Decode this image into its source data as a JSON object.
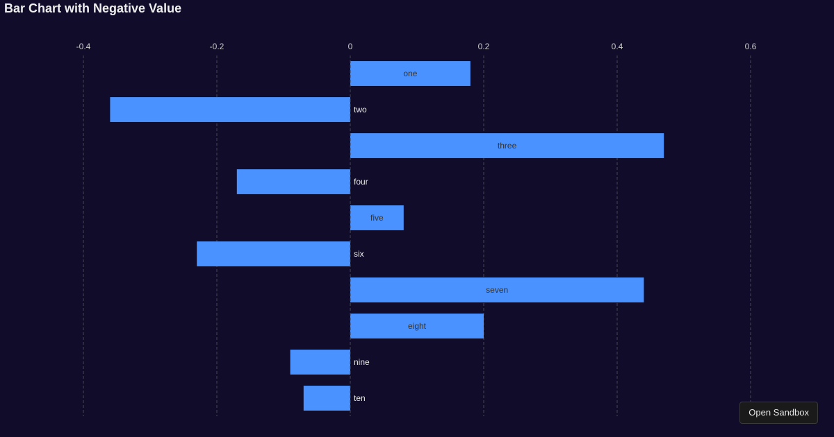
{
  "chart_data": {
    "type": "bar",
    "orientation": "horizontal",
    "title": "Bar Chart with Negative Value",
    "categories": [
      "one",
      "two",
      "three",
      "four",
      "five",
      "six",
      "seven",
      "eight",
      "nine",
      "ten"
    ],
    "values": [
      0.18,
      -0.36,
      0.47,
      -0.17,
      0.08,
      -0.23,
      0.44,
      0.2,
      -0.09,
      -0.07
    ],
    "xlim": [
      -0.5,
      0.7
    ],
    "xticks": [
      -0.4,
      -0.2,
      0,
      0.2,
      0.4,
      0.6
    ],
    "xtick_labels": [
      "-0.4",
      "-0.2",
      "0",
      "0.2",
      "0.4",
      "0.6"
    ],
    "xaxis_position": "top",
    "grid": "vertical dashed",
    "labels": "category name on bar (inside center for positive, right of zero for negative)",
    "colors": {
      "background": "#100c2a",
      "bar": "#4992ff",
      "grid": "#484753",
      "tick_text": "#cccccc",
      "label_inside": "#333333",
      "label_outside": "#eeeeee"
    }
  },
  "ui": {
    "sandbox_button": "Open Sandbox"
  }
}
